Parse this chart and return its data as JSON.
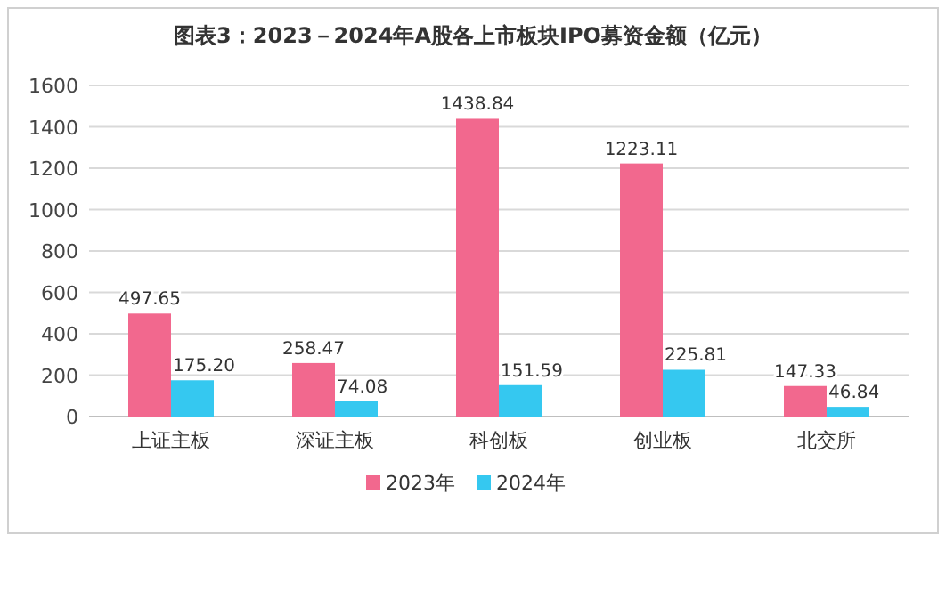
{
  "chart_data": {
    "type": "bar",
    "title": "图表3：2023－2024年A股各上市板块IPO募资金额（亿元）",
    "categories": [
      "上证主板",
      "深证主板",
      "科创板",
      "创业板",
      "北交所"
    ],
    "series": [
      {
        "name": "2023年",
        "color": "#f2688e",
        "values": [
          497.65,
          258.47,
          1438.84,
          1223.11,
          147.33
        ],
        "value_labels": [
          "497.65",
          "258.47",
          "1438.84",
          "1223.11",
          "147.33"
        ]
      },
      {
        "name": "2024年",
        "color": "#35c8f0",
        "values": [
          175.2,
          74.08,
          151.59,
          225.81,
          46.84
        ],
        "value_labels": [
          "175.20",
          "74.08",
          "151.59",
          "225.81",
          "46.84"
        ]
      }
    ],
    "ylim": [
      0,
      1600
    ],
    "yticks": [
      0,
      200,
      400,
      600,
      800,
      1000,
      1200,
      1400,
      1600
    ],
    "grid": "y",
    "legend": "bottom"
  }
}
